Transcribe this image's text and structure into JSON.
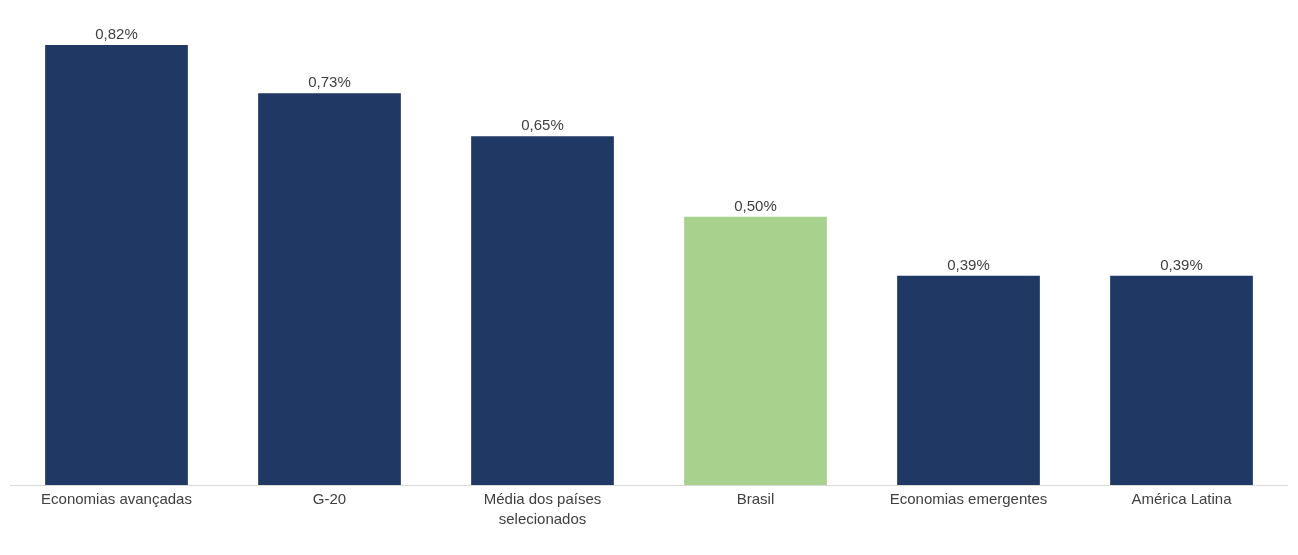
{
  "chart_data": {
    "type": "bar",
    "categories": [
      "Economias avançadas",
      "G-20",
      "Média dos países selecionados",
      "Brasil",
      "Economias emergentes",
      "América Latina"
    ],
    "values": [
      0.82,
      0.73,
      0.65,
      0.5,
      0.39,
      0.39
    ],
    "colors": [
      "#203864",
      "#203864",
      "#203864",
      "#a9d18e",
      "#203864",
      "#203864"
    ],
    "value_labels": [
      "0,82%",
      "0,73%",
      "0,65%",
      "0,50%",
      "0,39%",
      "0,39%"
    ]
  }
}
